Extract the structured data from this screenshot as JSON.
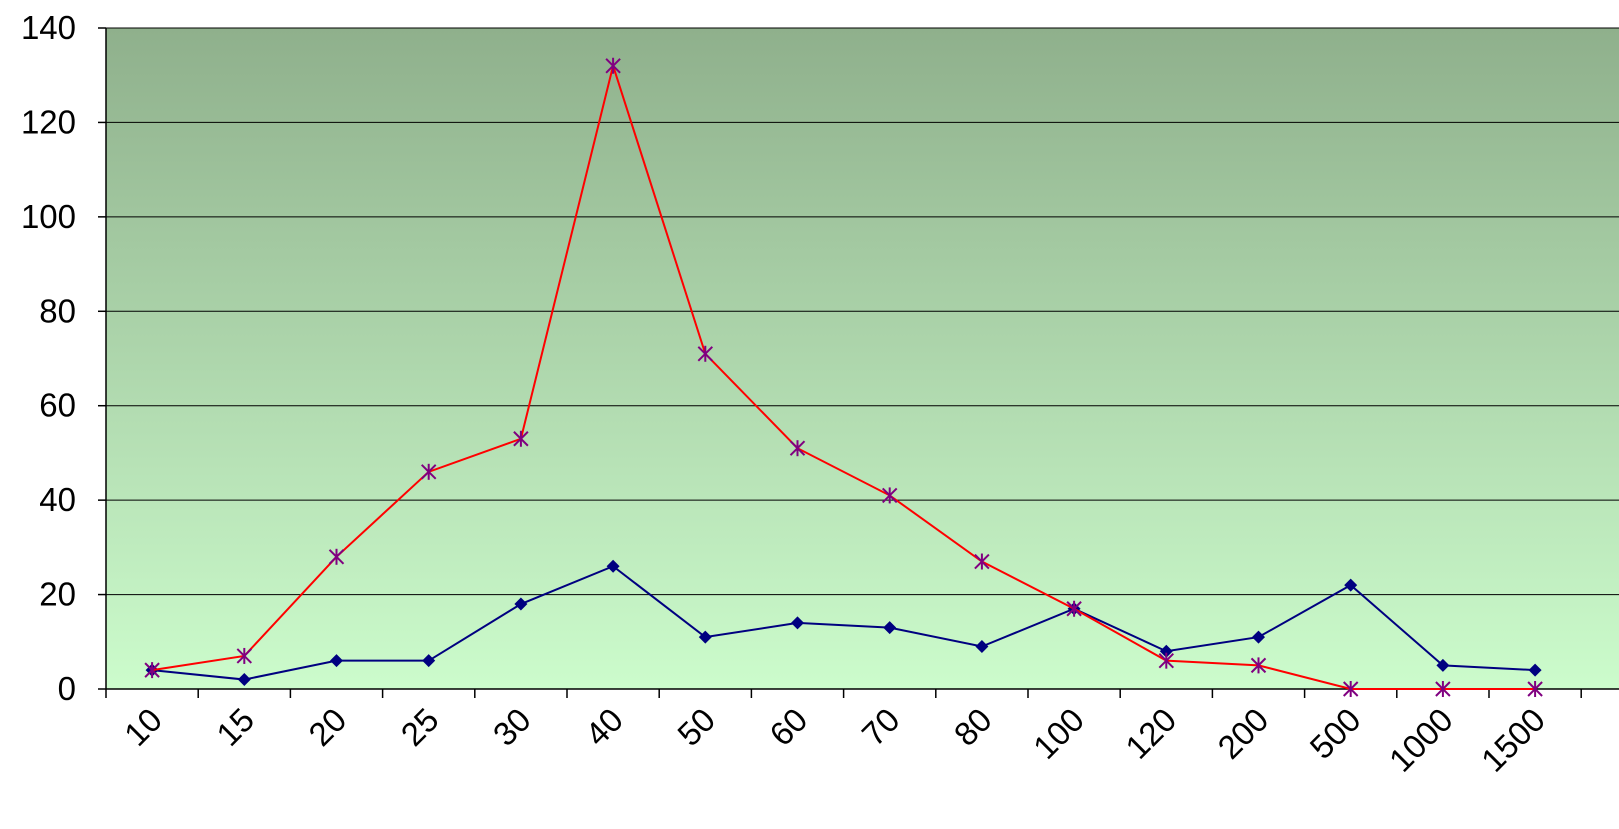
{
  "chart_data": {
    "type": "line",
    "title": "",
    "xlabel": "",
    "ylabel": "",
    "categories": [
      "10",
      "15",
      "20",
      "25",
      "30",
      "40",
      "50",
      "60",
      "70",
      "80",
      "100",
      "120",
      "200",
      "500",
      "1000",
      "1500"
    ],
    "ylim": [
      0,
      140
    ],
    "yticks": [
      "0",
      "20",
      "40",
      "60",
      "80",
      "100",
      "120",
      "140"
    ],
    "grid": true,
    "legend": "none",
    "background_gradient": [
      "#8fb08c",
      "#ccfccc"
    ],
    "series": [
      {
        "values": [
          4,
          2,
          6,
          6,
          18,
          26,
          11,
          14,
          13,
          9,
          17,
          8,
          11,
          22,
          5,
          4
        ],
        "line_color": "#000080",
        "marker": "diamond",
        "marker_color": "#000080"
      },
      {
        "values": [
          4,
          7,
          28,
          46,
          53,
          132,
          71,
          51,
          41,
          27,
          17,
          6,
          5,
          0,
          0,
          0
        ],
        "line_color": "#ff0000",
        "marker": "asterisk",
        "marker_color": "#800080"
      }
    ]
  }
}
